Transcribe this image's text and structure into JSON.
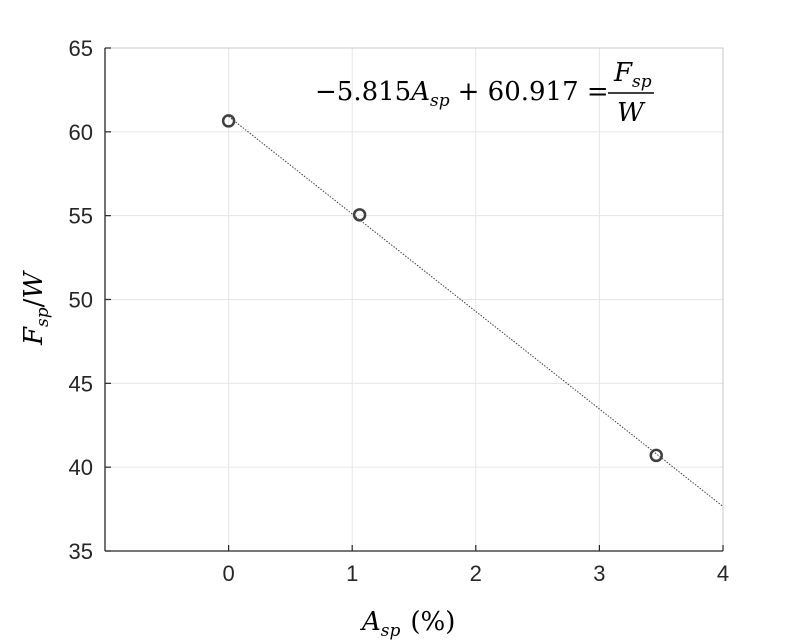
{
  "chart_data": {
    "type": "scatter",
    "xlim": [
      -1,
      4
    ],
    "ylim": [
      35,
      65
    ],
    "x_ticks": [
      0,
      1,
      2,
      3,
      4
    ],
    "y_ticks": [
      35,
      40,
      45,
      50,
      55,
      60,
      65
    ],
    "x_tick_labels": [
      "0",
      "1",
      "2",
      "3",
      "4"
    ],
    "y_tick_labels": [
      "35",
      "40",
      "45",
      "50",
      "55",
      "60",
      "65"
    ],
    "grid": true,
    "series": [
      {
        "type": "scatter",
        "marker": "circle-open",
        "color": "#404040",
        "x": [
          0,
          1.06,
          3.46
        ],
        "y": [
          60.65,
          55.05,
          40.7
        ]
      },
      {
        "type": "line",
        "style": "dotted",
        "color": "#404040",
        "slope": -5.815,
        "intercept": 60.917,
        "x_range": [
          0,
          4
        ]
      }
    ],
    "xlabel": {
      "var": "A",
      "sub": "sp",
      "unit": "(%)"
    },
    "ylabel": {
      "num": "F",
      "num_sub": "sp",
      "slash": "/",
      "den": "W"
    },
    "annotation": {
      "lhs": "−5.815",
      "var": "A",
      "sub": "sp",
      "op": "+ 60.917 =",
      "frac_num": "F",
      "frac_num_sub": "sp",
      "frac_den": "W"
    }
  }
}
